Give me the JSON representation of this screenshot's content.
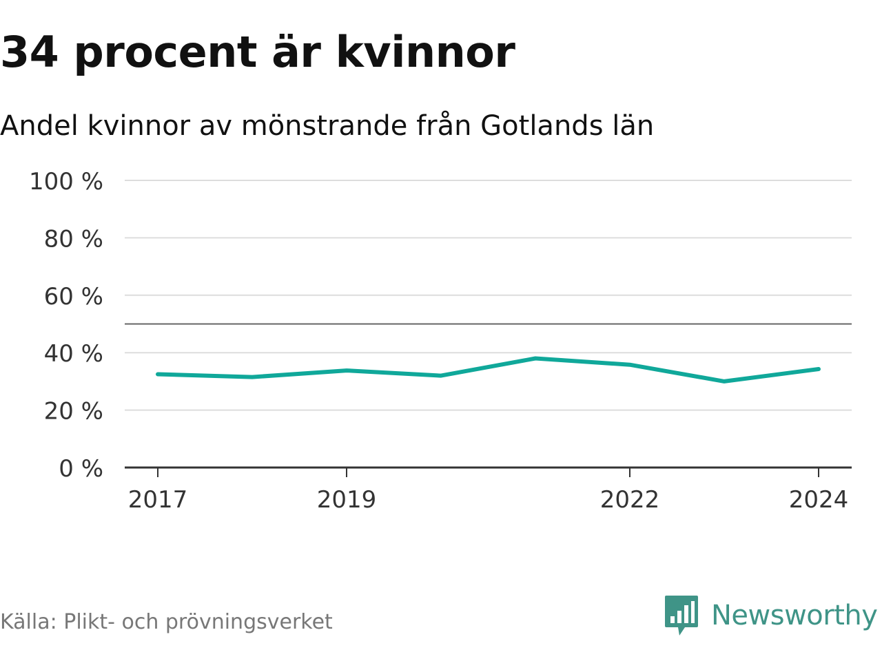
{
  "chart_data": {
    "type": "line",
    "title": "34 procent är kvinnor",
    "subtitle": "Andel kvinnor av mönstrande från Gotlands län",
    "x": [
      2017,
      2018,
      2019,
      2020,
      2021,
      2022,
      2023,
      2024
    ],
    "xticks": [
      "2017",
      "2019",
      "2022",
      "2024"
    ],
    "series": [
      {
        "name": "Andel kvinnor",
        "values": [
          32.5,
          31.5,
          33.8,
          32.0,
          38.0,
          35.8,
          30.0,
          34.3
        ],
        "color": "#10a89a"
      }
    ],
    "yticks": [
      "0 %",
      "20 %",
      "40 %",
      "60 %",
      "80 %",
      "100 %"
    ],
    "ytick_values": [
      0,
      20,
      40,
      60,
      80,
      100
    ],
    "ylim": [
      0,
      100
    ],
    "reference_line": 50,
    "grid": true,
    "xlabel": "",
    "ylabel": ""
  },
  "source": "Källa: Plikt- och prövningsverket",
  "brand": {
    "name": "Newsworthy",
    "color": "#3f9487"
  },
  "colors": {
    "line": "#10a89a",
    "grid": "#dddddd",
    "reference": "#666666",
    "axis": "#333333"
  }
}
